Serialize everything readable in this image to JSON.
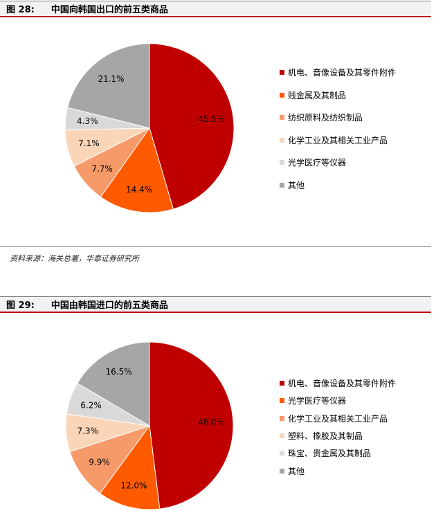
{
  "source_note": "资料来源：海关总署，华泰证券研究所",
  "chart_data": [
    {
      "type": "pie",
      "figure_label": "图 28:",
      "title": "中国向韩国出口的前五类商品",
      "slices": [
        {
          "label": "机电、音像设备及其零件附件",
          "value": 45.5,
          "value_label": "45.5%",
          "color": "#c00000"
        },
        {
          "label": "贱金属及其制品",
          "value": 14.4,
          "value_label": "14.4%",
          "color": "#ff5a00"
        },
        {
          "label": "纺织原料及纺织制品",
          "value": 7.7,
          "value_label": "7.7%",
          "color": "#f79a6a"
        },
        {
          "label": "化学工业及其相关工业产品",
          "value": 7.1,
          "value_label": "7.1%",
          "color": "#fbd5b7"
        },
        {
          "label": "光学医疗等仪器",
          "value": 4.3,
          "value_label": "4.3%",
          "color": "#d9d9d9"
        },
        {
          "label": "其他",
          "value": 21.1,
          "value_label": "21.1%",
          "color": "#a6a6a6"
        }
      ]
    },
    {
      "type": "pie",
      "figure_label": "图 29:",
      "title": "中国由韩国进口的前五类商品",
      "slices": [
        {
          "label": "机电、音像设备及其零件附件",
          "value": 48.0,
          "value_label": "48.0%",
          "color": "#c00000"
        },
        {
          "label": "光学医疗等仪器",
          "value": 12.0,
          "value_label": "12.0%",
          "color": "#ff5a00"
        },
        {
          "label": "化学工业及其相关工业产品",
          "value": 9.9,
          "value_label": "9.9%",
          "color": "#f79a6a"
        },
        {
          "label": "塑料、橡胶及其制品",
          "value": 7.3,
          "value_label": "7.3%",
          "color": "#fbd5b7"
        },
        {
          "label": "珠宝、贵金属及其制品",
          "value": 6.2,
          "value_label": "6.2%",
          "color": "#d9d9d9"
        },
        {
          "label": "其他",
          "value": 16.5,
          "value_label": "16.5%",
          "color": "#a6a6a6"
        }
      ]
    }
  ]
}
